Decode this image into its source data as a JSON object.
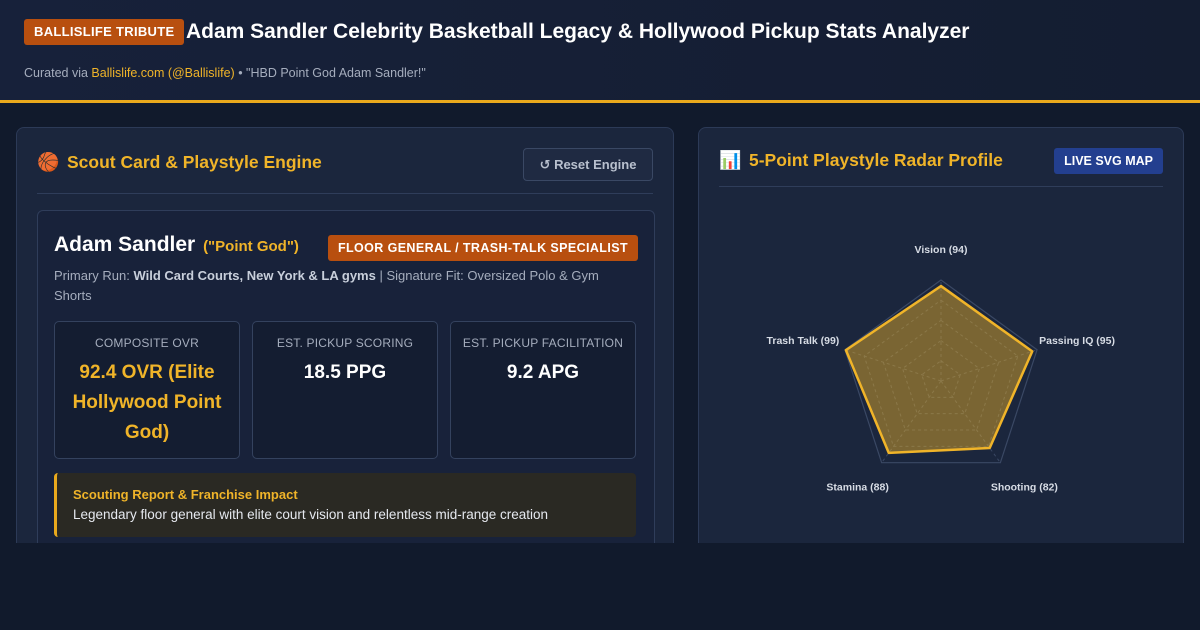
{
  "header": {
    "badge": "BALLISLIFE TRIBUTE",
    "title": "Adam Sandler Celebrity Basketball Legacy & Hollywood Pickup Stats Analyzer",
    "subtitle_prefix": "Curated via",
    "subtitle_link": "Ballislife.com (@Ballislife)",
    "subtitle_suffix": "• \"HBD Point God Adam Sandler!\""
  },
  "scout_panel": {
    "icon": "basketball-icon",
    "title": "Scout Card & Playstyle Engine",
    "reset_label": "↺ Reset Engine",
    "player": {
      "name": "Adam Sandler",
      "nickname": "(\"Point God\")",
      "role_badge": "FLOOR GENERAL / TRASH-TALK SPECIALIST",
      "primary_run_label": "Primary Run:",
      "primary_run_value": "Wild Card Courts, New York & LA gyms",
      "signature_fit": "| Signature Fit: Oversized Polo & Gym Shorts"
    },
    "stats": [
      {
        "label": "COMPOSITE OVR",
        "value": "92.4 OVR (Elite Hollywood Point God)"
      },
      {
        "label": "EST. PICKUP SCORING",
        "value": "18.5 PPG"
      },
      {
        "label": "EST. PICKUP FACILITATION",
        "value": "9.2 APG"
      }
    ],
    "report": {
      "title": "Scouting Report & Franchise Impact",
      "text": "Legendary floor general with elite court vision and relentless mid-range creation"
    }
  },
  "radar_panel": {
    "icon": "bar-chart-icon",
    "title": "5-Point Playstyle Radar Profile",
    "badge": "LIVE SVG MAP"
  },
  "chart_data": {
    "type": "radar",
    "axes": [
      "Vision",
      "Passing IQ",
      "Shooting",
      "Stamina",
      "Trash Talk"
    ],
    "axis_labels": [
      "Vision (94)",
      "Passing IQ (95)",
      "Shooting (82)",
      "Stamina (88)",
      "Trash Talk (99)"
    ],
    "values": [
      94,
      95,
      82,
      88,
      99
    ],
    "range": [
      0,
      100
    ],
    "rings": 5,
    "colors": {
      "fill": "#f0b429",
      "stroke": "#f0b429",
      "grid": "#3a4864"
    }
  }
}
